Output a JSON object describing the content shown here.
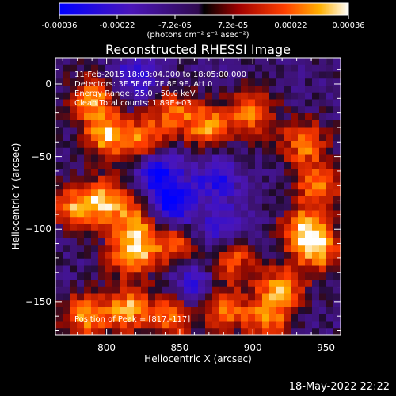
{
  "chart_data": {
    "type": "heatmap",
    "title": "Reconstructed RHESSI Image",
    "xlabel": "Heliocentric X (arcsec)",
    "ylabel": "Heliocentric Y (arcsec)",
    "xlim": [
      765,
      960
    ],
    "ylim": [
      -173,
      18
    ],
    "xticks": [
      800,
      850,
      900,
      950
    ],
    "yticks": [
      0,
      -50,
      -100,
      -150
    ],
    "colorbar": {
      "ticks": [
        "-0.00036",
        "-0.00022",
        "-7.2e-05",
        "7.2e-05",
        "0.00022",
        "0.00036"
      ],
      "units": "(photons cm⁻² s⁻¹ asec⁻²)",
      "range": [
        -0.00036,
        0.00036
      ]
    },
    "annotations": [
      "11-Feb-2015 18:03:04.000 to 18:05:00.000",
      "Detectors: 3F 5F 6F 7F 8F 9F, Att 0",
      "Energy Range: 25.0 - 50.0 keV",
      "Clean     Total counts: 1.89E+03"
    ],
    "peak_label": "Position of Peak = [817,-117]",
    "peak_position": [
      817,
      -117
    ],
    "grid": false,
    "hotspots": [
      {
        "x": 790,
        "y": -10,
        "v": 0.85
      },
      {
        "x": 800,
        "y": -35,
        "v": 0.95
      },
      {
        "x": 825,
        "y": -40,
        "v": 0.8
      },
      {
        "x": 845,
        "y": -20,
        "v": 0.7
      },
      {
        "x": 870,
        "y": -30,
        "v": 0.85
      },
      {
        "x": 900,
        "y": -20,
        "v": 0.8
      },
      {
        "x": 935,
        "y": -40,
        "v": 0.8
      },
      {
        "x": 945,
        "y": -70,
        "v": 0.85
      },
      {
        "x": 935,
        "y": -100,
        "v": 0.9
      },
      {
        "x": 945,
        "y": -115,
        "v": 0.85
      },
      {
        "x": 780,
        "y": -85,
        "v": 0.85
      },
      {
        "x": 800,
        "y": -80,
        "v": 0.8
      },
      {
        "x": 820,
        "y": -95,
        "v": 0.75
      },
      {
        "x": 817,
        "y": -117,
        "v": 1.0
      },
      {
        "x": 845,
        "y": -110,
        "v": 0.7
      },
      {
        "x": 885,
        "y": -120,
        "v": 0.75
      },
      {
        "x": 920,
        "y": -140,
        "v": 0.8
      },
      {
        "x": 785,
        "y": -160,
        "v": 0.85
      },
      {
        "x": 815,
        "y": -155,
        "v": 0.9
      },
      {
        "x": 845,
        "y": -160,
        "v": 0.8
      },
      {
        "x": 880,
        "y": -155,
        "v": 0.75
      },
      {
        "x": 910,
        "y": -160,
        "v": 0.8
      }
    ],
    "coldspots": [
      {
        "x": 835,
        "y": -60,
        "v": -0.9
      },
      {
        "x": 845,
        "y": -85,
        "v": -0.85
      },
      {
        "x": 875,
        "y": -65,
        "v": -0.6
      },
      {
        "x": 880,
        "y": -100,
        "v": -0.6
      },
      {
        "x": 820,
        "y": 5,
        "v": -0.6
      },
      {
        "x": 860,
        "y": -140,
        "v": -0.6
      }
    ]
  },
  "datestamp": "18-May-2022 22:22"
}
